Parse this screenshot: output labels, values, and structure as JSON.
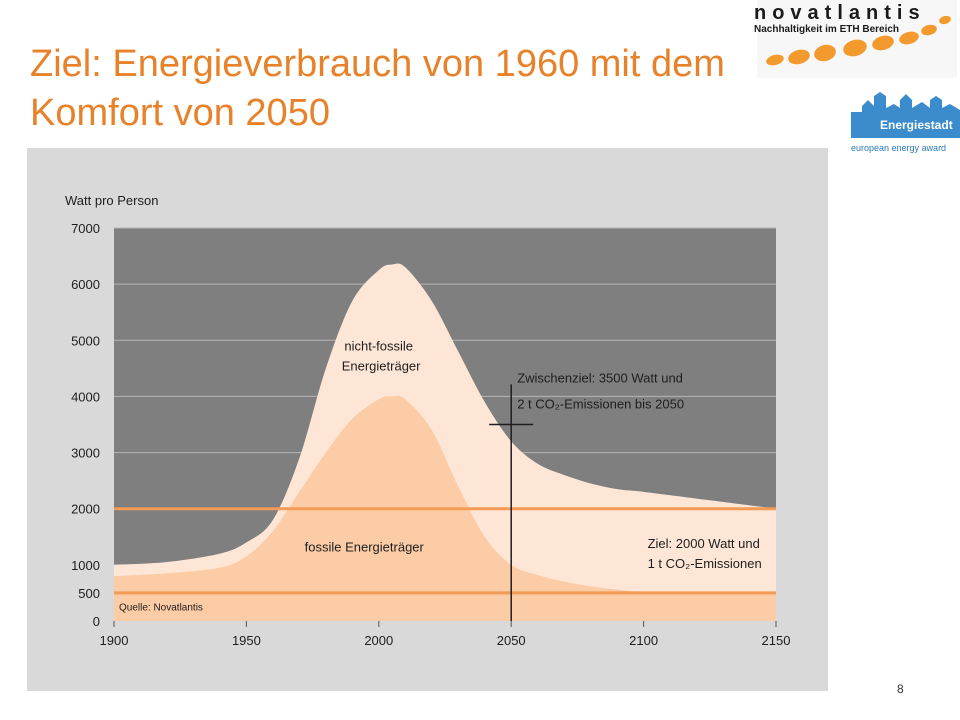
{
  "slide": {
    "title": "Ziel: Energieverbrauch von 1960 mit dem Komfort von 2050",
    "page_number": "8"
  },
  "logos": {
    "novatlantis_name": "novatlantis",
    "novatlantis_tagline": "Nachhaltigkeit im ETH Bereich",
    "energiestadt_name": "Energiestadt",
    "energiestadt_award": "european energy award"
  },
  "colors": {
    "title": "#e8822a",
    "panel": "#d9d9d9",
    "plot_background": "#7f7f7f",
    "non_fossil_area": "#fde6d6",
    "fossil_area": "#fbcca5",
    "target_lines": "#f39a55",
    "text": "#1e1e1e"
  },
  "chart_data": {
    "type": "area",
    "ylabel": "Watt pro Person",
    "xlim": [
      1900,
      2150
    ],
    "ylim": [
      0,
      7000
    ],
    "x_ticks": [
      1900,
      1950,
      2000,
      2050,
      2100,
      2150
    ],
    "y_ticks": [
      0,
      500,
      1000,
      2000,
      3000,
      4000,
      5000,
      6000,
      7000
    ],
    "grid": true,
    "series": [
      {
        "name": "nicht-fossile Energieträger",
        "x": [
          1900,
          1920,
          1940,
          1950,
          1960,
          1970,
          1980,
          1990,
          2000,
          2005,
          2010,
          2020,
          2030,
          2040,
          2050,
          2060,
          2070,
          2080,
          2090,
          2100,
          2125,
          2150
        ],
        "values": [
          1000,
          1050,
          1200,
          1400,
          1800,
          2900,
          4500,
          5700,
          6250,
          6350,
          6300,
          5700,
          4800,
          3900,
          3200,
          2800,
          2600,
          2450,
          2350,
          2300,
          2150,
          2000
        ]
      },
      {
        "name": "fossile Energieträger",
        "x": [
          1900,
          1920,
          1940,
          1950,
          1960,
          1970,
          1980,
          1990,
          2000,
          2005,
          2010,
          2020,
          2030,
          2040,
          2050,
          2060,
          2070,
          2080,
          2090,
          2100,
          2125,
          2150
        ],
        "values": [
          800,
          850,
          950,
          1150,
          1600,
          2300,
          3000,
          3600,
          3950,
          4000,
          3950,
          3400,
          2400,
          1500,
          1000,
          820,
          700,
          620,
          560,
          520,
          510,
          500
        ]
      }
    ],
    "reference_lines": [
      {
        "y": 2000,
        "label": "Ziel: 2000 Watt und",
        "label2": "1 t CO₂-Emissionen"
      },
      {
        "y": 500
      }
    ],
    "marker": {
      "x": 2050,
      "y": 3500,
      "label": "Zwischenziel: 3500 Watt und",
      "label2": "2 t CO₂-Emissionen bis 2050"
    },
    "annotations": [
      {
        "text": "nicht-fossile",
        "x": 2000,
        "y": 4600
      },
      {
        "text": "Energieträger",
        "x": 2000,
        "y": 4200
      },
      {
        "text": "fossile Energieträger",
        "x": 1980,
        "y": 1250
      }
    ],
    "source": "Quelle: Novatlantis"
  }
}
